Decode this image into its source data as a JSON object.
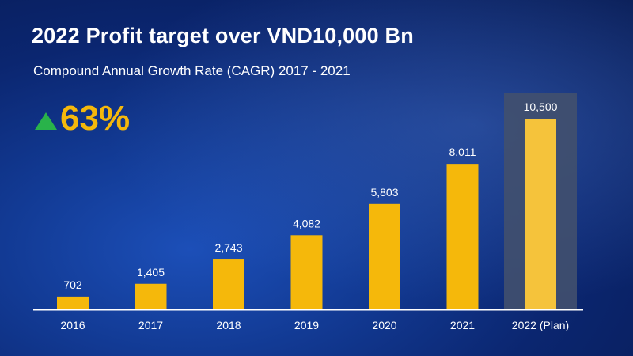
{
  "title": "2022 Profit target over VND10,000 Bn",
  "subtitle": "Compound Annual Growth Rate (CAGR) 2017 - 2021",
  "kpi": {
    "arrow_icon": "up-triangle-icon",
    "value": "63%"
  },
  "colors": {
    "bar": "#f5b80b",
    "highlight_bar": "#f5c33b",
    "highlight_panel": "#41506e",
    "arrow": "#29b34a",
    "axis": "#ffffff",
    "label": "#ffffff"
  },
  "chart_data": {
    "type": "bar",
    "categories": [
      "2016",
      "2017",
      "2018",
      "2019",
      "2020",
      "2021",
      "2022 (Plan)"
    ],
    "values": [
      702,
      1405,
      2743,
      4082,
      5803,
      8011,
      10500
    ],
    "data_labels": [
      "702",
      "1,405",
      "2,743",
      "4,082",
      "5,803",
      "8,011",
      "10,500"
    ],
    "highlight_index": 6,
    "ylim": [
      0,
      10500
    ],
    "grid": false,
    "legend": "none"
  }
}
